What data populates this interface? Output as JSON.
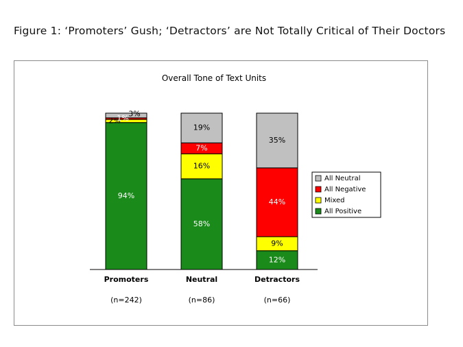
{
  "figure_title": "Figure 1: ‘Promoters’ Gush; ‘Detractors’ are Not Totally Critical of Their Doctors",
  "chart_data": {
    "type": "bar",
    "stacked": true,
    "percent": true,
    "title": "Overall Tone of Text Units",
    "categories": [
      "Promoters",
      "Neutral",
      "Detractors"
    ],
    "sample_sizes": [
      "(n=242)",
      "(n=86)",
      "(n=66)"
    ],
    "series": [
      {
        "name": "All Positive",
        "color": "#1a8a1a",
        "values": [
          94,
          58,
          12
        ],
        "labels": [
          "94%",
          "58%",
          "12%"
        ]
      },
      {
        "name": "Mixed",
        "color": "#ffff00",
        "values": [
          2,
          16,
          9
        ],
        "labels": [
          "2%",
          "16%",
          "9%"
        ]
      },
      {
        "name": "All Negative",
        "color": "#ff0000",
        "values": [
          1,
          7,
          44
        ],
        "labels": [
          "1%",
          "7%",
          "44%"
        ]
      },
      {
        "name": "All Neutral",
        "color": "#c0c0c0",
        "values": [
          3,
          19,
          35
        ],
        "labels": [
          "3%",
          "19%",
          "35%"
        ]
      }
    ],
    "ylim": [
      0,
      100
    ],
    "grid": false,
    "legend_position": "right"
  }
}
